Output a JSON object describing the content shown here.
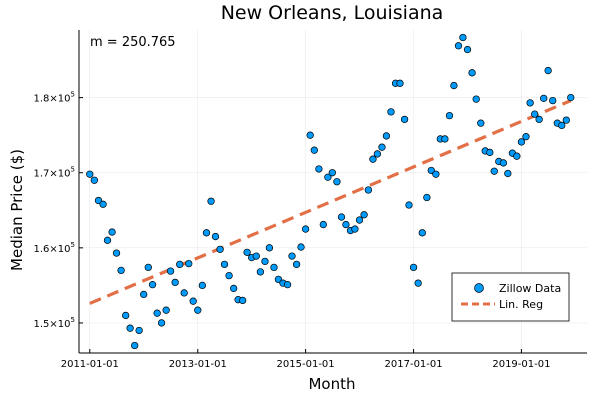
{
  "chart_data": {
    "type": "scatter",
    "title": "New Orleans, Louisiana",
    "xlabel": "Month",
    "ylabel": "Median Price ($)",
    "annotation": "m = 250.765",
    "grid": true,
    "legend_position": "bottom-right",
    "xlim": [
      "2010-10-20",
      "2020-03-20"
    ],
    "ylim": [
      146000,
      189000
    ],
    "x_ticks": [
      "2011-01-01",
      "2013-01-01",
      "2015-01-01",
      "2017-01-01",
      "2019-01-01"
    ],
    "y_ticks": [
      {
        "value": 150000,
        "mantissa": "1.5×10",
        "exp": "5"
      },
      {
        "value": 160000,
        "mantissa": "1.6×10",
        "exp": "5"
      },
      {
        "value": 170000,
        "mantissa": "1.7×10",
        "exp": "5"
      },
      {
        "value": 180000,
        "mantissa": "1.8×10",
        "exp": "5"
      }
    ],
    "series": [
      {
        "name": "Zillow Data",
        "kind": "scatter",
        "color": "#009AFA",
        "x": [
          "2011-01-01",
          "2011-02-01",
          "2011-03-01",
          "2011-04-01",
          "2011-05-01",
          "2011-06-01",
          "2011-07-01",
          "2011-08-01",
          "2011-09-01",
          "2011-10-01",
          "2011-11-01",
          "2011-12-01",
          "2012-01-01",
          "2012-02-01",
          "2012-03-01",
          "2012-04-01",
          "2012-05-01",
          "2012-06-01",
          "2012-07-01",
          "2012-08-01",
          "2012-09-01",
          "2012-10-01",
          "2012-11-01",
          "2012-12-01",
          "2013-01-01",
          "2013-02-01",
          "2013-03-01",
          "2013-04-01",
          "2013-05-01",
          "2013-06-01",
          "2013-07-01",
          "2013-08-01",
          "2013-09-01",
          "2013-10-01",
          "2013-11-01",
          "2013-12-01",
          "2014-01-01",
          "2014-02-01",
          "2014-03-01",
          "2014-04-01",
          "2014-05-01",
          "2014-06-01",
          "2014-07-01",
          "2014-08-01",
          "2014-09-01",
          "2014-10-01",
          "2014-11-01",
          "2014-12-01",
          "2015-01-01",
          "2015-02-01",
          "2015-03-01",
          "2015-04-01",
          "2015-05-01",
          "2015-06-01",
          "2015-07-01",
          "2015-08-01",
          "2015-09-01",
          "2015-10-01",
          "2015-11-01",
          "2015-12-01",
          "2016-01-01",
          "2016-02-01",
          "2016-03-01",
          "2016-04-01",
          "2016-05-01",
          "2016-06-01",
          "2016-07-01",
          "2016-08-01",
          "2016-09-01",
          "2016-10-01",
          "2016-11-01",
          "2016-12-01",
          "2017-01-01",
          "2017-02-01",
          "2017-03-01",
          "2017-04-01",
          "2017-05-01",
          "2017-06-01",
          "2017-07-01",
          "2017-08-01",
          "2017-09-01",
          "2017-10-01",
          "2017-11-01",
          "2017-12-01",
          "2018-01-01",
          "2018-02-01",
          "2018-03-01",
          "2018-04-01",
          "2018-05-01",
          "2018-06-01",
          "2018-07-01",
          "2018-08-01",
          "2018-09-01",
          "2018-10-01",
          "2018-11-01",
          "2018-12-01",
          "2019-01-01",
          "2019-02-01",
          "2019-03-01",
          "2019-04-01",
          "2019-05-01",
          "2019-06-01",
          "2019-07-01",
          "2019-08-01",
          "2019-09-01",
          "2019-10-01",
          "2019-11-01",
          "2019-12-01"
        ],
        "y": [
          169800,
          169000,
          166300,
          165800,
          161000,
          162100,
          159300,
          157000,
          151000,
          149300,
          147000,
          149000,
          153800,
          157400,
          155100,
          151300,
          150000,
          151700,
          156900,
          155400,
          157800,
          154000,
          157900,
          152900,
          151700,
          155000,
          162000,
          166200,
          161500,
          159800,
          157800,
          156300,
          154600,
          153100,
          153000,
          159400,
          158700,
          158900,
          156800,
          158200,
          160000,
          157400,
          155800,
          155300,
          155100,
          158900,
          157800,
          160100,
          162500,
          175000,
          173000,
          170500,
          163100,
          169400,
          170000,
          168800,
          164100,
          163100,
          162300,
          162500,
          163700,
          164400,
          167700,
          171800,
          172500,
          173400,
          174900,
          178100,
          181900,
          181900,
          177100,
          165700,
          157400,
          155300,
          162000,
          166700,
          170300,
          169800,
          174500,
          174500,
          177600,
          181600,
          186900,
          188000,
          186400,
          183300,
          179800,
          176600,
          172900,
          172700,
          170200,
          171500,
          171300,
          169900,
          172600,
          172200,
          174100,
          174800,
          179300,
          177800,
          177100,
          179900,
          183600,
          179600,
          176600,
          176300,
          177000,
          180000
        ]
      },
      {
        "name": "Lin. Reg",
        "kind": "line",
        "color": "#E26F46",
        "x": [
          "2011-01-01",
          "2019-12-01"
        ],
        "y": [
          152600,
          179600
        ]
      }
    ]
  }
}
